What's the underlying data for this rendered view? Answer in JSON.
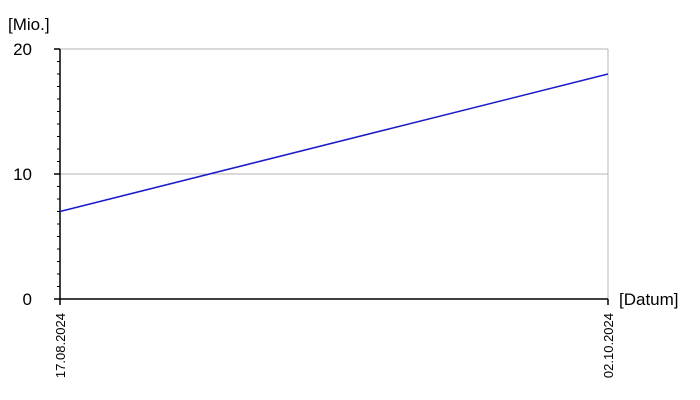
{
  "chart_data": {
    "type": "line",
    "y_label": "[Mio.]",
    "x_label": "[Datum]",
    "x": [
      "17.08.2024",
      "02.10.2024"
    ],
    "series": [
      {
        "color": "#1a1acc",
        "values": [
          7,
          18
        ]
      }
    ],
    "ylim": [
      0,
      20
    ],
    "yticks": [
      0,
      10,
      20
    ],
    "grid": true
  }
}
